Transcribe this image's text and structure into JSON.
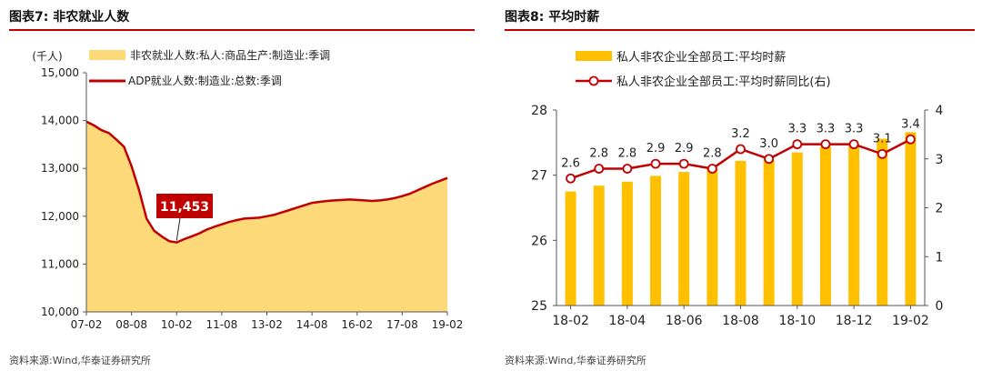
{
  "left": {
    "title": "图表7:  非农就业人数",
    "source": "资料来源:Wind,华泰证券研究所",
    "chart_data": {
      "type": "area",
      "unit_label": "(千人)",
      "ylim": [
        10000,
        15000
      ],
      "y_ticks": [
        "10,000",
        "11,000",
        "12,000",
        "13,000",
        "14,000",
        "15,000"
      ],
      "x_ticks": [
        "07-02",
        "08-08",
        "10-02",
        "11-08",
        "13-02",
        "14-08",
        "16-02",
        "17-08",
        "19-02"
      ],
      "series": [
        {
          "name": "非农就业人数:私人:商品生产:制造业:季调",
          "kind": "area",
          "color": "#fdd97a"
        },
        {
          "name": "ADP就业人数:制造业:总数:季调",
          "kind": "line",
          "color": "#c00000"
        }
      ],
      "x": [
        "07-02",
        "07-05",
        "07-08",
        "07-11",
        "08-02",
        "08-05",
        "08-08",
        "08-11",
        "09-02",
        "09-05",
        "09-08",
        "09-11",
        "10-02",
        "10-05",
        "10-08",
        "10-11",
        "11-02",
        "11-05",
        "11-08",
        "11-11",
        "12-02",
        "12-05",
        "12-08",
        "12-11",
        "13-02",
        "13-05",
        "13-08",
        "13-11",
        "14-02",
        "14-05",
        "14-08",
        "14-11",
        "15-02",
        "15-05",
        "15-08",
        "15-11",
        "16-02",
        "16-05",
        "16-08",
        "16-11",
        "17-02",
        "17-05",
        "17-08",
        "17-11",
        "18-02",
        "18-05",
        "18-08",
        "18-11",
        "19-02"
      ],
      "values": [
        13980,
        13900,
        13800,
        13740,
        13600,
        13450,
        13050,
        12550,
        11950,
        11700,
        11580,
        11480,
        11453,
        11520,
        11580,
        11640,
        11720,
        11780,
        11830,
        11880,
        11920,
        11950,
        11960,
        11970,
        12000,
        12030,
        12080,
        12130,
        12180,
        12230,
        12280,
        12300,
        12320,
        12330,
        12340,
        12350,
        12340,
        12330,
        12320,
        12330,
        12350,
        12380,
        12420,
        12470,
        12540,
        12610,
        12680,
        12740,
        12800
      ],
      "annotation": {
        "text": "11,453",
        "x": "10-02",
        "value": 11453
      }
    }
  },
  "right": {
    "title": "图表8:  平均时薪",
    "source": "资料来源:Wind,华泰证券研究所",
    "chart_data": {
      "type": "bar",
      "ylim_left": [
        25,
        28
      ],
      "ylim_right": [
        0,
        4
      ],
      "y_ticks_left": [
        "25",
        "26",
        "27",
        "28"
      ],
      "y_ticks_right": [
        "0",
        "1",
        "2",
        "3",
        "4"
      ],
      "x_ticks": [
        "18-02",
        "18-04",
        "18-06",
        "18-08",
        "18-10",
        "18-12",
        "19-02"
      ],
      "categories": [
        "18-02",
        "18-03",
        "18-04",
        "18-05",
        "18-06",
        "18-07",
        "18-08",
        "18-09",
        "18-10",
        "18-11",
        "18-12",
        "19-01",
        "19-02"
      ],
      "series": [
        {
          "name": "私人非农企业全部员工:平均时薪",
          "kind": "bar",
          "axis": "left",
          "color": "#ffc000",
          "values": [
            26.75,
            26.84,
            26.9,
            26.99,
            27.05,
            27.11,
            27.22,
            27.24,
            27.35,
            27.44,
            27.48,
            27.56,
            27.66
          ]
        },
        {
          "name": "私人非农企业全部员工:平均时薪同比(右)",
          "kind": "line",
          "axis": "right",
          "color": "#c00000",
          "values": [
            2.6,
            2.8,
            2.8,
            2.9,
            2.9,
            2.8,
            3.2,
            3.0,
            3.3,
            3.3,
            3.3,
            3.1,
            3.4
          ],
          "labels": [
            "2.6",
            "2.8",
            "2.8",
            "2.9",
            "2.9",
            "2.8",
            "3.2",
            "3.0",
            "3.3",
            "3.3",
            "3.3",
            "3.1",
            "3.4"
          ]
        }
      ]
    }
  }
}
